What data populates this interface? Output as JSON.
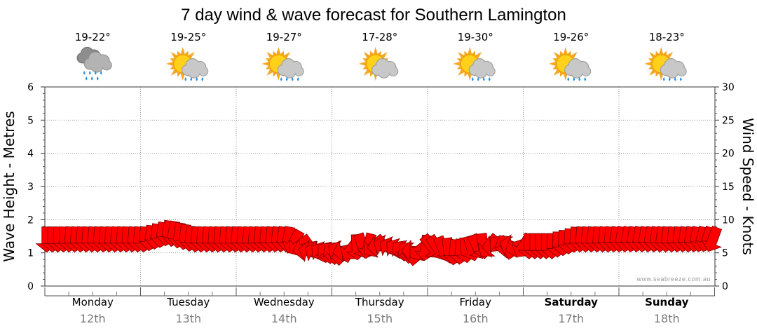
{
  "chart_data": {
    "type": "line",
    "title": "7 day wind & wave forecast for Southern Lamington",
    "ylabel_left": "Wave Height - Metres",
    "ylabel_right": "Wind Speed - Knots",
    "ylim_left": [
      0,
      6
    ],
    "ylim_right": [
      0,
      30
    ],
    "yticks_left": [
      "0",
      "1",
      "2",
      "3",
      "4",
      "5",
      "6"
    ],
    "yticks_right": [
      "0",
      "5",
      "10",
      "15",
      "20",
      "25",
      "30"
    ],
    "grid": true,
    "credit": "www.seabreeze.com.au",
    "days": [
      {
        "name": "Monday",
        "date": "12th",
        "temp": "19-22°",
        "icon": "rain-cloud-icon",
        "bold": false
      },
      {
        "name": "Tuesday",
        "date": "13th",
        "temp": "19-25°",
        "icon": "sun-cloud-rain-icon",
        "bold": false
      },
      {
        "name": "Wednesday",
        "date": "14th",
        "temp": "19-27°",
        "icon": "sun-cloud-rain-icon",
        "bold": false
      },
      {
        "name": "Thursday",
        "date": "15th",
        "temp": "17-28°",
        "icon": "sun-cloud-icon",
        "bold": false
      },
      {
        "name": "Friday",
        "date": "16th",
        "temp": "19-30°",
        "icon": "sun-cloud-rain-icon",
        "bold": false
      },
      {
        "name": "Saturday",
        "date": "17th",
        "temp": "19-26°",
        "icon": "sun-cloud-rain-icon",
        "bold": true
      },
      {
        "name": "Sunday",
        "date": "18th",
        "temp": "18-23°",
        "icon": "sun-cloud-rain-icon",
        "bold": true
      }
    ],
    "series": [
      {
        "name": "Wind Speed",
        "unit": "knots",
        "color": "#ff0000",
        "x_day": [
          0.05,
          0.3,
          0.55,
          0.8,
          1.05,
          1.3,
          1.55,
          1.8,
          2.05,
          2.3,
          2.55,
          2.8,
          3.05,
          3.3,
          3.55,
          3.8,
          4.05,
          4.3,
          4.55,
          4.8,
          5.05,
          5.3,
          5.55,
          5.8,
          6.05,
          6.3,
          6.55,
          6.8,
          6.95
        ],
        "values": [
          7,
          7,
          7,
          7,
          7,
          8,
          7,
          7,
          7,
          7,
          7,
          5,
          5,
          6,
          6,
          5,
          6,
          5,
          6,
          6,
          6,
          6,
          7,
          7,
          7,
          7,
          7,
          7,
          7
        ],
        "direction_deg": [
          90,
          95,
          95,
          95,
          95,
          100,
          95,
          95,
          95,
          95,
          100,
          200,
          230,
          60,
          200,
          230,
          45,
          100,
          60,
          250,
          90,
          90,
          95,
          95,
          100,
          100,
          95,
          100,
          110
        ]
      }
    ]
  }
}
